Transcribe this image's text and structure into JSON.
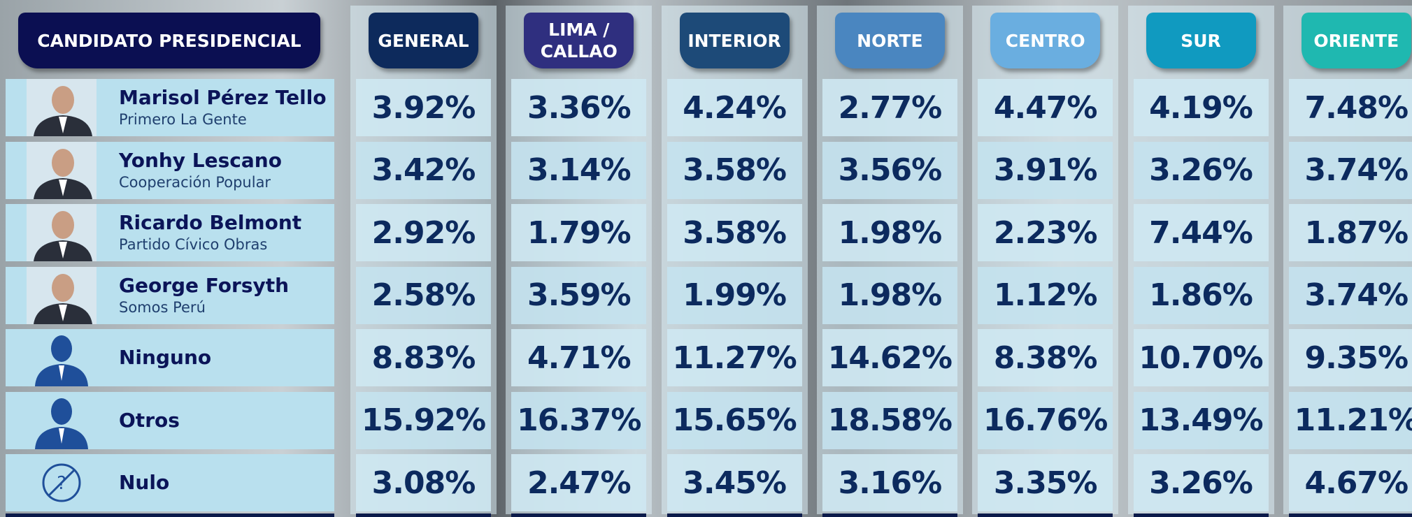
{
  "header": {
    "title": "CANDIDATO PRESIDENCIAL"
  },
  "columns": [
    "GENERAL",
    "LIMA / CALLAO",
    "INTERIOR",
    "NORTE",
    "CENTRO",
    "SUR",
    "ORIENTE"
  ],
  "rows": [
    {
      "name": "Marisol Pérez Tello",
      "party": "Primero La Gente",
      "values": [
        "3.92%",
        "3.36%",
        "4.24%",
        "2.77%",
        "4.47%",
        "4.19%",
        "7.48%"
      ]
    },
    {
      "name": "Yonhy Lescano",
      "party": "Cooperación Popular",
      "values": [
        "3.42%",
        "3.14%",
        "3.58%",
        "3.56%",
        "3.91%",
        "3.26%",
        "3.74%"
      ]
    },
    {
      "name": "Ricardo Belmont",
      "party": "Partido Cívico Obras",
      "values": [
        "2.92%",
        "1.79%",
        "3.58%",
        "1.98%",
        "2.23%",
        "7.44%",
        "1.87%"
      ]
    },
    {
      "name": "George Forsyth",
      "party": "Somos Perú",
      "values": [
        "2.58%",
        "3.59%",
        "1.99%",
        "1.98%",
        "1.12%",
        "1.86%",
        "3.74%"
      ]
    },
    {
      "name": "Ninguno",
      "values": [
        "8.83%",
        "4.71%",
        "11.27%",
        "14.62%",
        "8.38%",
        "10.70%",
        "9.35%"
      ]
    },
    {
      "name": "Otros",
      "values": [
        "15.92%",
        "16.37%",
        "15.65%",
        "18.58%",
        "16.76%",
        "13.49%",
        "11.21%"
      ]
    },
    {
      "name": "Nulo",
      "values": [
        "3.08%",
        "2.47%",
        "3.45%",
        "3.16%",
        "3.35%",
        "3.26%",
        "4.67%"
      ]
    }
  ]
}
